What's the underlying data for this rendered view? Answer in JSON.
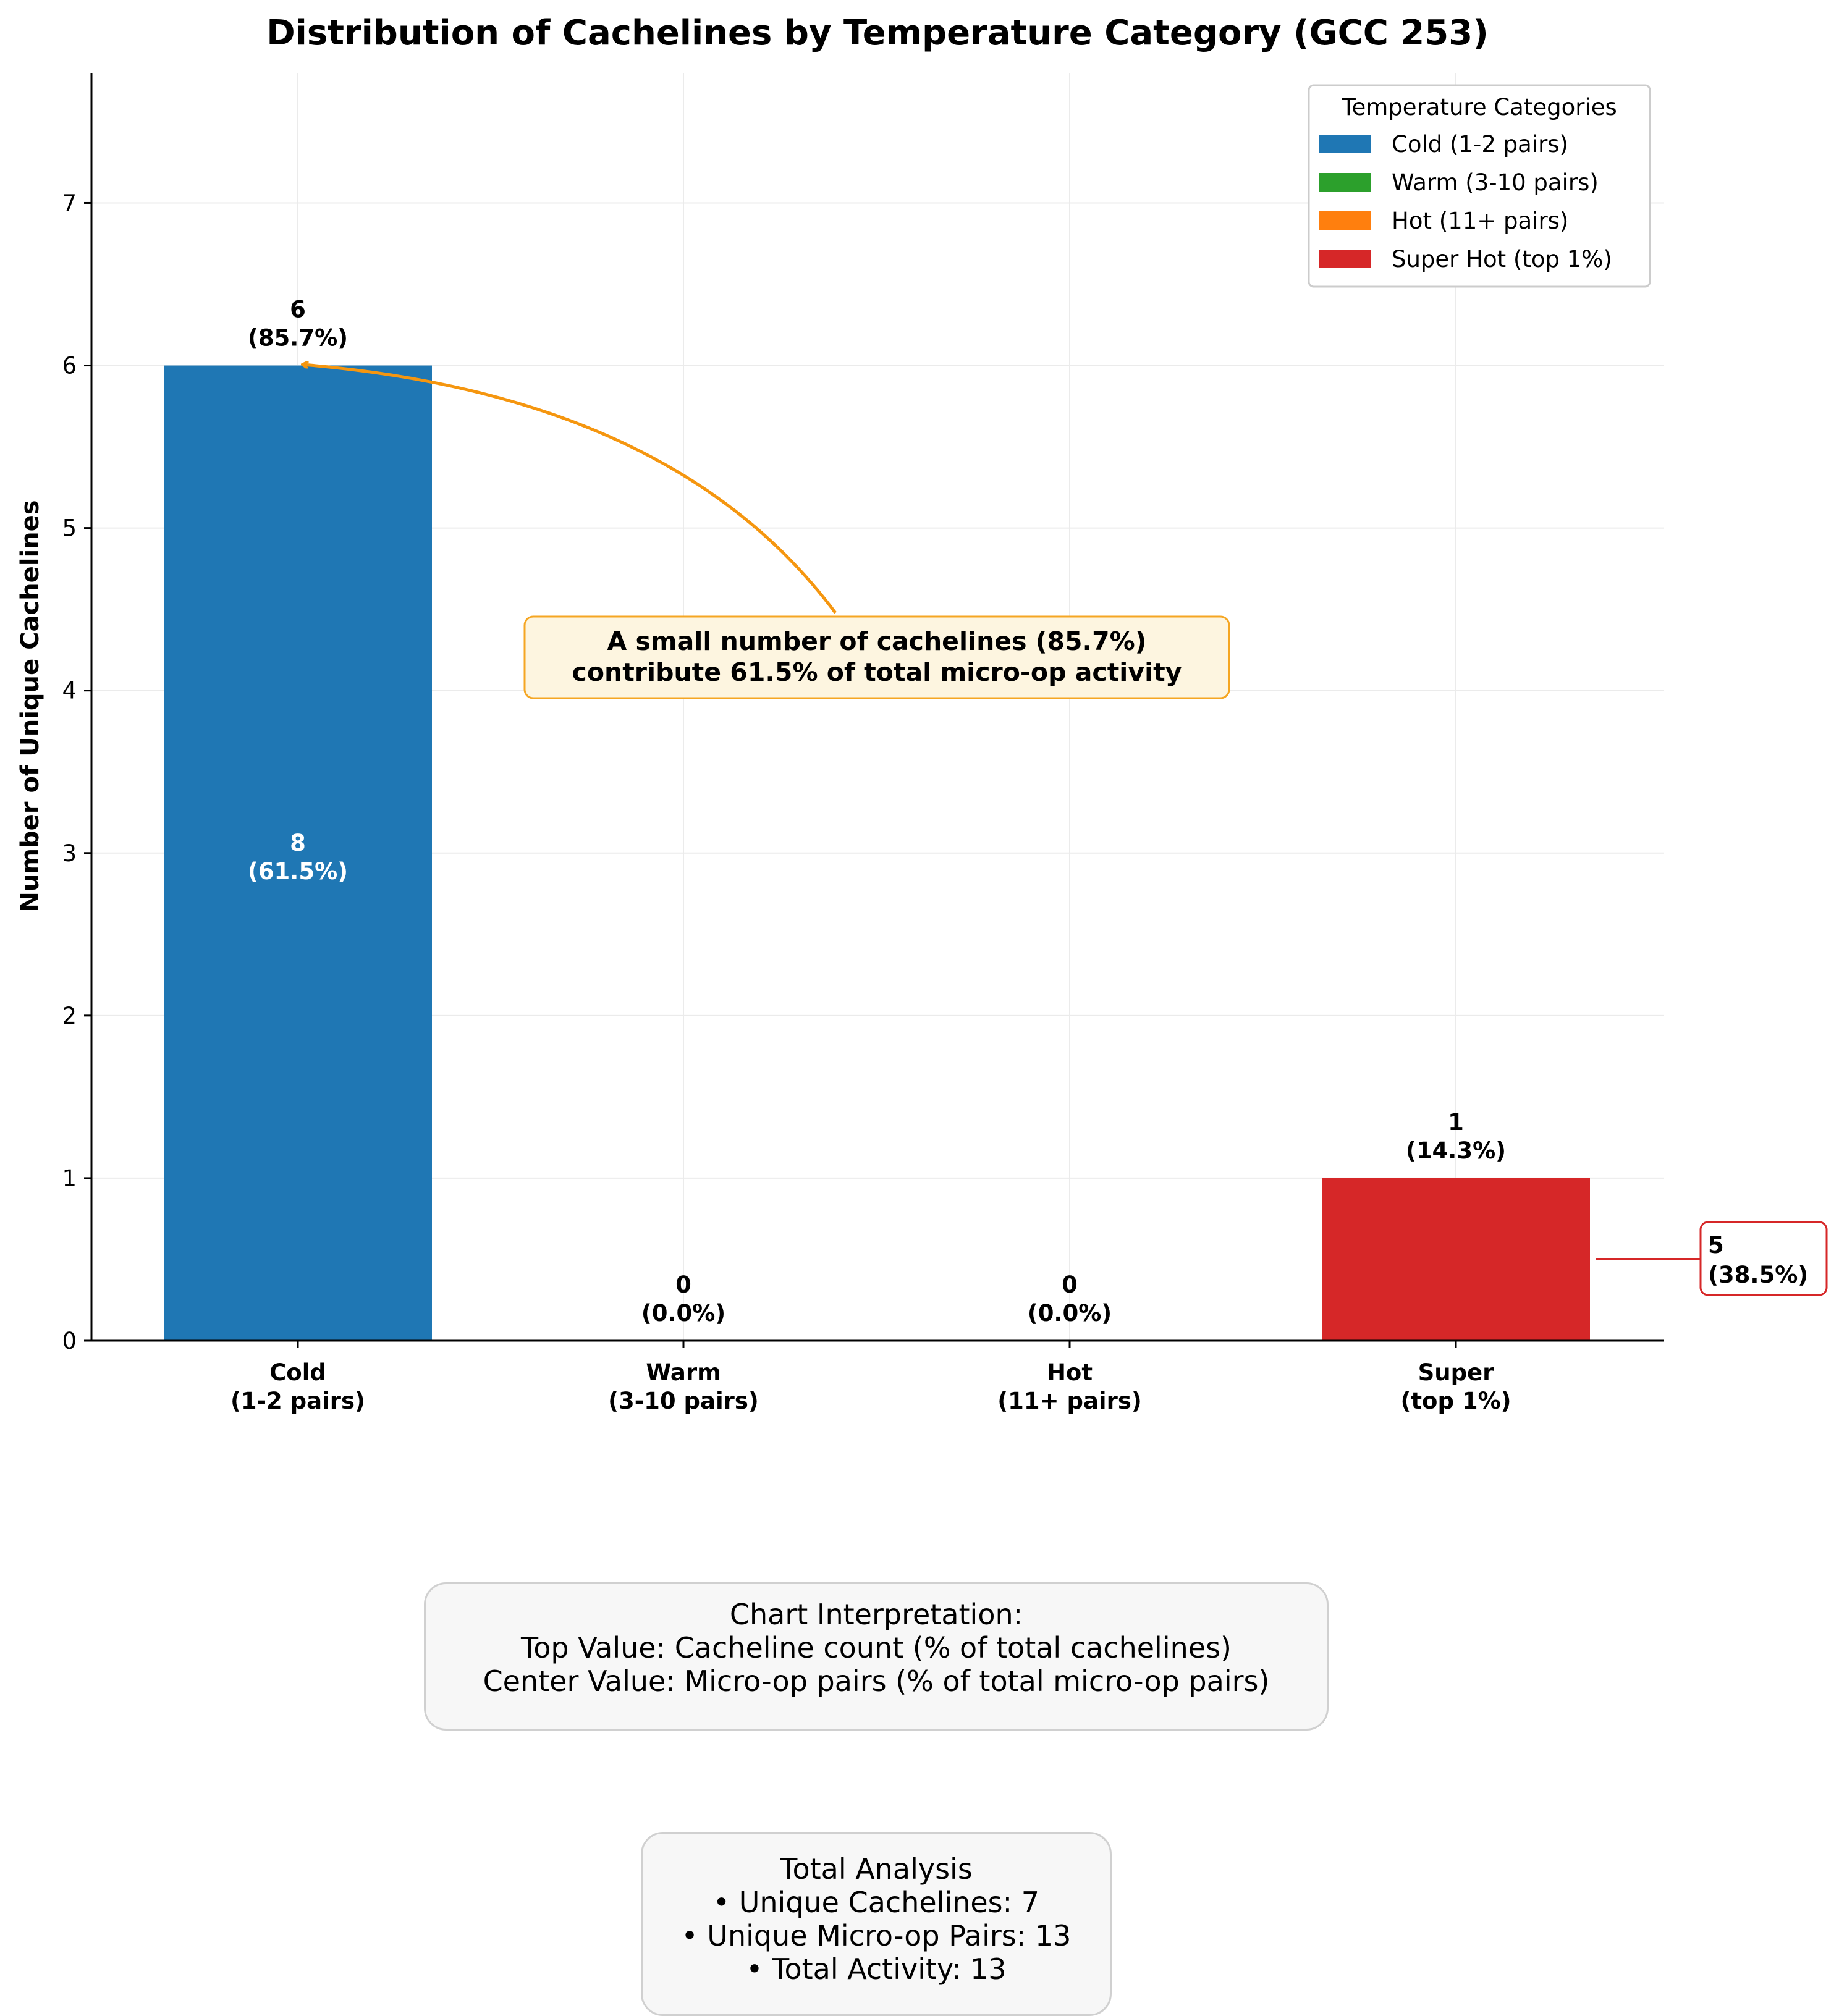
{
  "chart_data": {
    "type": "bar",
    "title": "Distribution of Cachelines by Temperature Category (GCC 253)",
    "xlabel": "",
    "ylabel": "Number of Unique Cachelines",
    "ylim": [
      0,
      7.8
    ],
    "yticks": [
      "0",
      "1",
      "2",
      "3",
      "4",
      "5",
      "6",
      "7"
    ],
    "grid": true,
    "categories": [
      {
        "line1": "Cold",
        "line2": "(1-2 pairs)"
      },
      {
        "line1": "Warm",
        "line2": "(3-10 pairs)"
      },
      {
        "line1": "Hot",
        "line2": "(11+ pairs)"
      },
      {
        "line1": "Super",
        "line2": "(top 1%)"
      }
    ],
    "values": [
      6,
      0,
      0,
      1
    ],
    "colors": [
      "#1f77b4",
      "#2ca02c",
      "#ff7f0e",
      "#d62728"
    ],
    "top_labels": [
      {
        "count": "6",
        "pct": "(85.7%)"
      },
      {
        "count": "0",
        "pct": "(0.0%)"
      },
      {
        "count": "0",
        "pct": "(0.0%)"
      },
      {
        "count": "1",
        "pct": "(14.3%)"
      }
    ],
    "center_labels": [
      {
        "count": "8",
        "pct": "(61.5%)"
      }
    ],
    "side_label": {
      "count": "5",
      "pct": "(38.5%)",
      "color": "#d62728"
    },
    "legend": {
      "title": "Temperature Categories",
      "position": "top-right",
      "items": [
        {
          "label": "Cold (1-2 pairs)",
          "color": "#1f77b4"
        },
        {
          "label": "Warm (3-10 pairs)",
          "color": "#2ca02c"
        },
        {
          "label": "Hot (11+ pairs)",
          "color": "#ff7f0e"
        },
        {
          "label": "Super Hot (top 1%)",
          "color": "#d62728"
        }
      ]
    },
    "annotation": {
      "line1": "A small number of cachelines (85.7%)",
      "line2": "contribute 61.5% of total micro-op activity",
      "arrow_color": "#f5960f",
      "box_fill": "#fdf5e0"
    }
  },
  "interpretation": {
    "title": "Chart Interpretation:",
    "line1": "Top Value: Cacheline count (% of total cachelines)",
    "line2": "Center Value: Micro-op pairs (% of total micro-op pairs)"
  },
  "totals": {
    "title": "Total Analysis",
    "line1": "• Unique Cachelines: 7",
    "line2": "• Unique Micro-op Pairs: 13",
    "line3": "• Total Activity: 13"
  }
}
